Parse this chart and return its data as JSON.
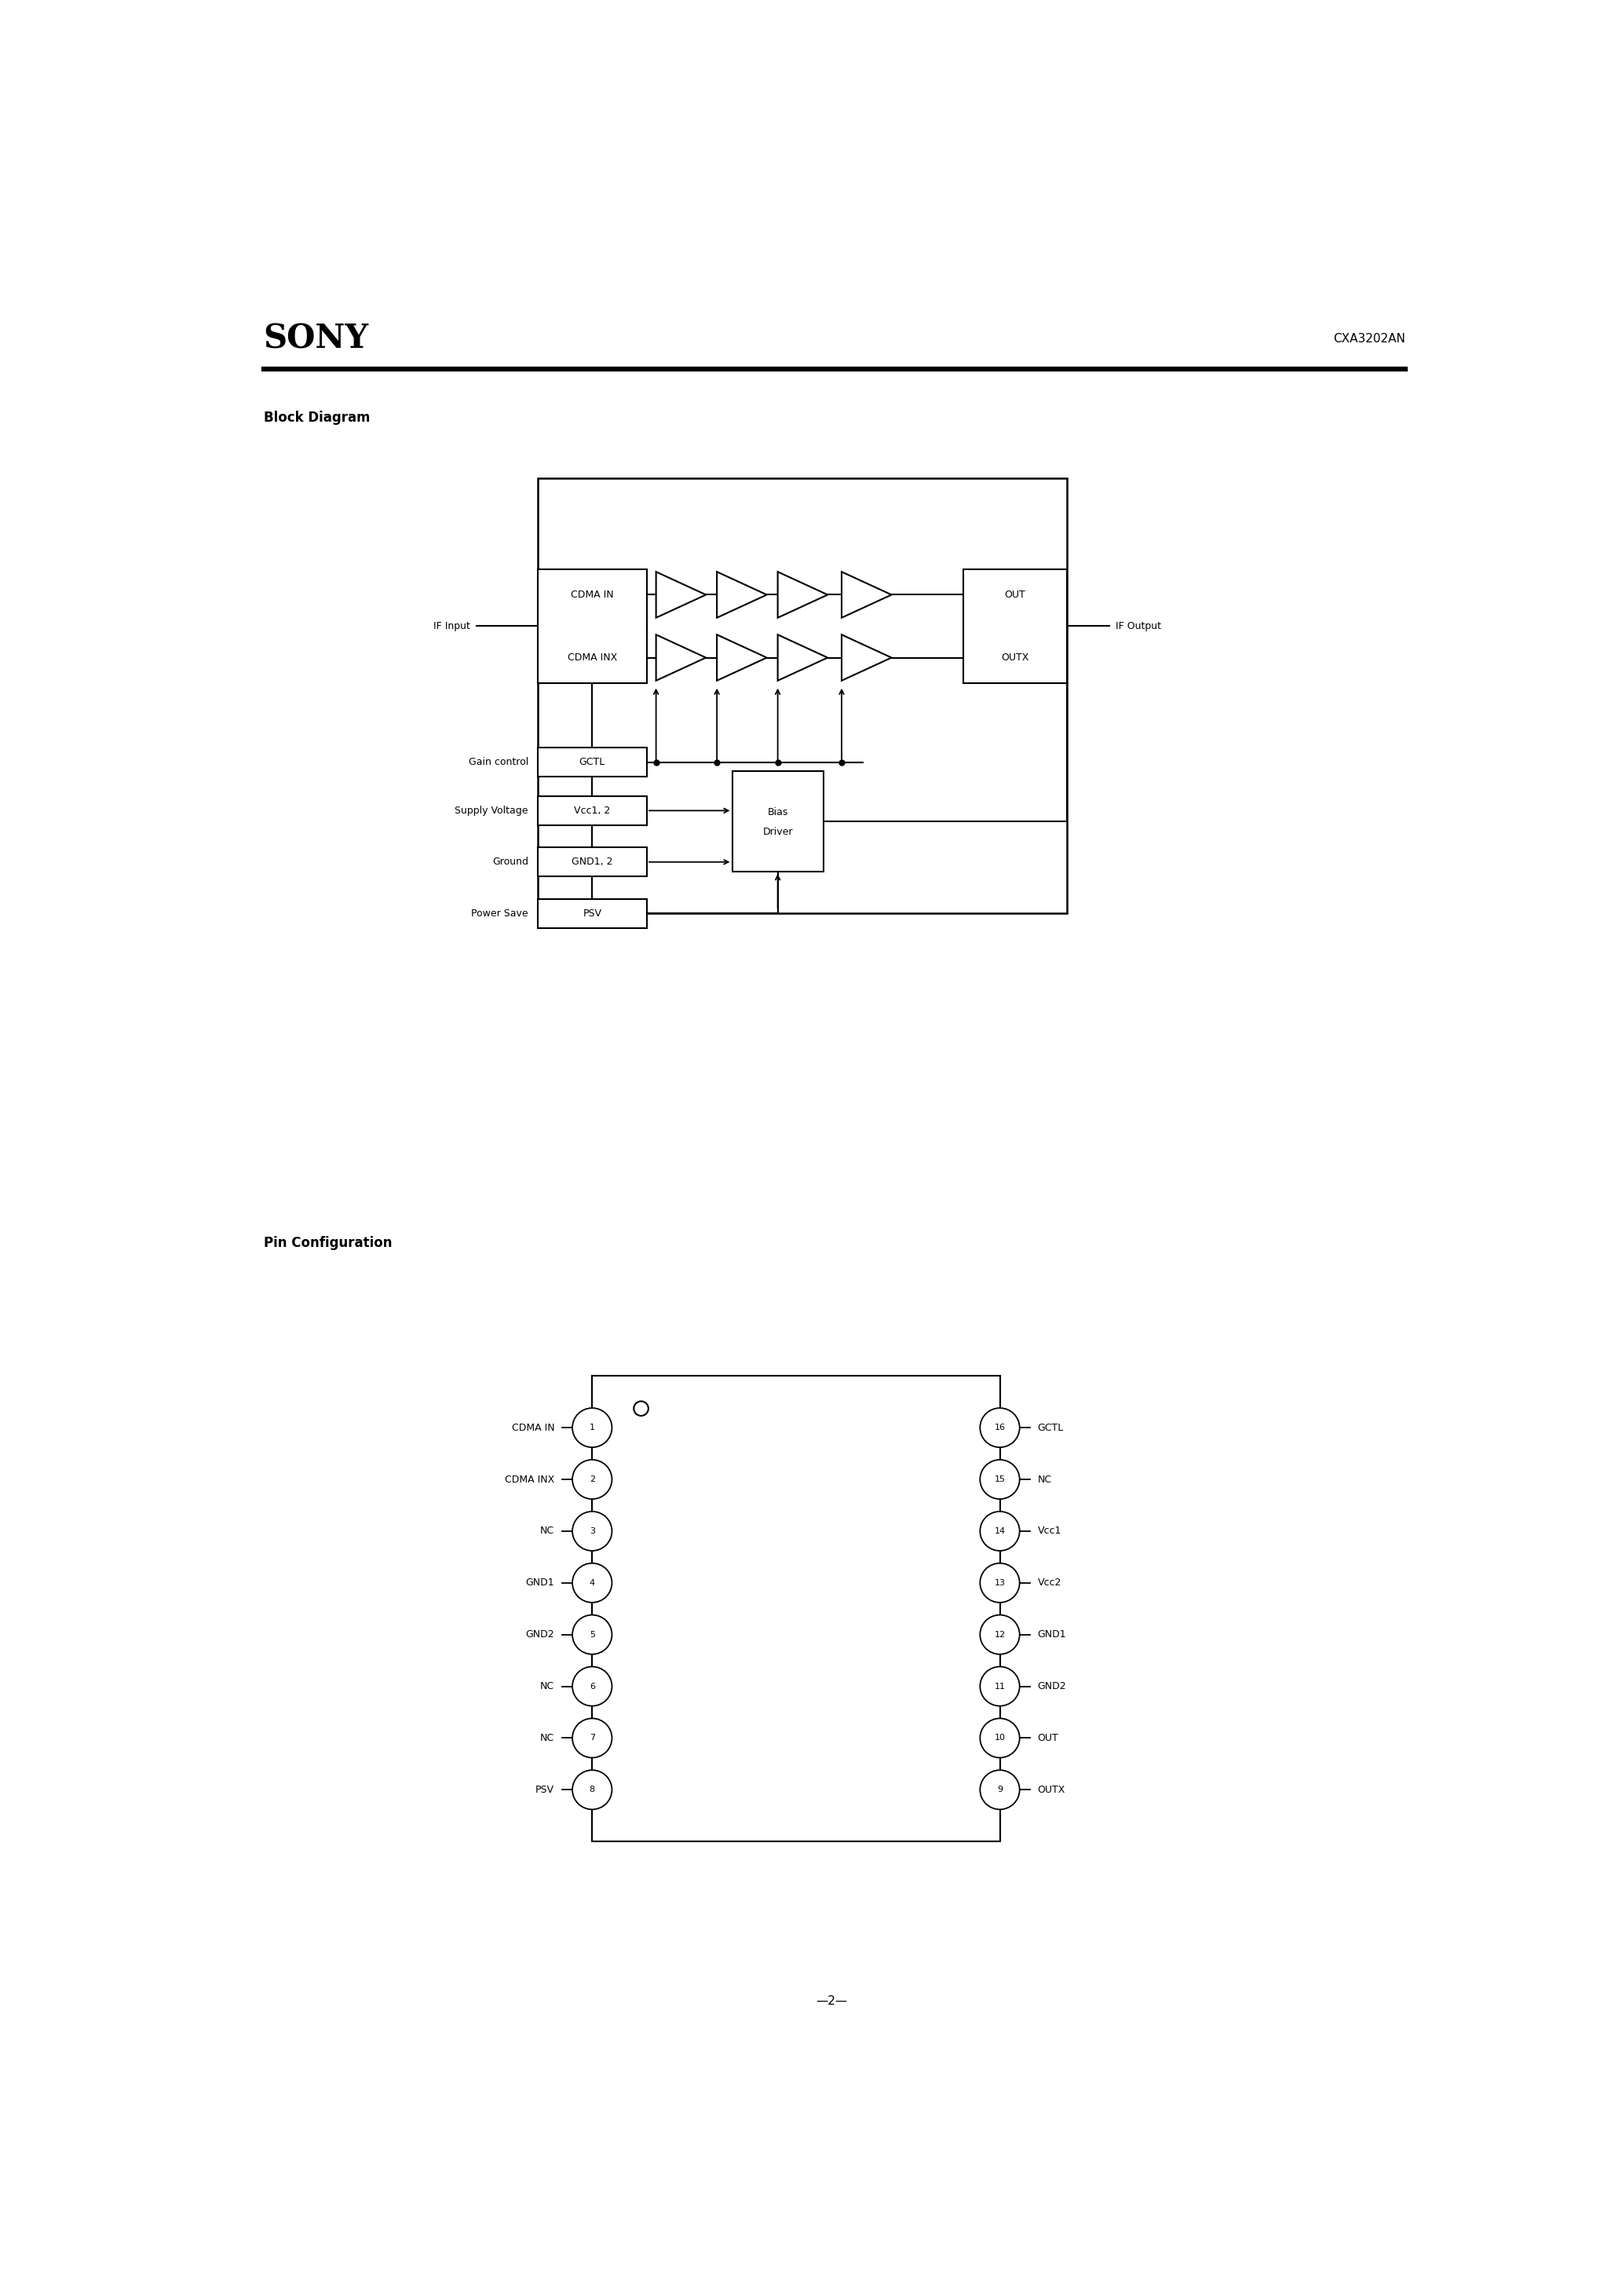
{
  "page_title": "SONY",
  "part_number": "CXA3202AN",
  "page_number": "—2—",
  "block_diagram_title": "Block Diagram",
  "pin_config_title": "Pin Configuration",
  "bg_color": "#ffffff",
  "text_color": "#000000",
  "left_pins": [
    {
      "num": "1",
      "name": "CDMA IN"
    },
    {
      "num": "2",
      "name": "CDMA INX"
    },
    {
      "num": "3",
      "name": "NC"
    },
    {
      "num": "4",
      "name": "GND1"
    },
    {
      "num": "5",
      "name": "GND2"
    },
    {
      "num": "6",
      "name": "NC"
    },
    {
      "num": "7",
      "name": "NC"
    },
    {
      "num": "8",
      "name": "PSV"
    }
  ],
  "right_pins": [
    {
      "num": "16",
      "name": "GCTL"
    },
    {
      "num": "15",
      "name": "NC"
    },
    {
      "num": "14",
      "name": "Vcc1"
    },
    {
      "num": "13",
      "name": "Vcc2"
    },
    {
      "num": "12",
      "name": "GND1"
    },
    {
      "num": "11",
      "name": "GND2"
    },
    {
      "num": "10",
      "name": "OUT"
    },
    {
      "num": "9",
      "name": "OUTX"
    }
  ],
  "figw": 20.66,
  "figh": 29.24
}
